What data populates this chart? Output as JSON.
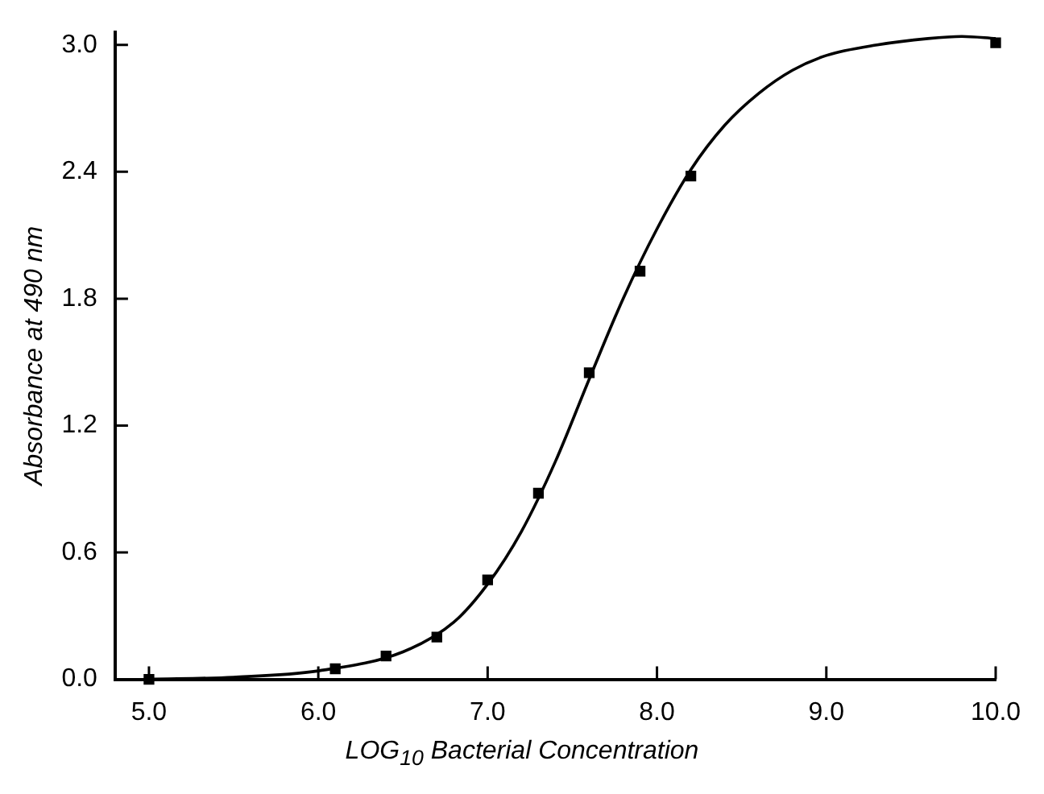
{
  "chart_data": {
    "type": "scatter",
    "xlabel": "LOG$_{10}$ Bacterial Concentration",
    "ylabel": "Absorbance at 490 nm",
    "xlim": [
      4.8,
      10.0
    ],
    "ylim": [
      0,
      3.06
    ],
    "xticks": [
      {
        "value": 5,
        "label": "5.0"
      },
      {
        "value": 6,
        "label": "6.0"
      },
      {
        "value": 7,
        "label": "7.0"
      },
      {
        "value": 8,
        "label": "8.0"
      },
      {
        "value": 9,
        "label": "9.0"
      },
      {
        "value": 10,
        "label": "10.0"
      }
    ],
    "yticks": [
      {
        "value": 0,
        "label": "0.0"
      },
      {
        "value": 0.6,
        "label": "0.6"
      },
      {
        "value": 1.2,
        "label": "1.2"
      },
      {
        "value": 1.8,
        "label": "1.8"
      },
      {
        "value": 2.4,
        "label": "2.4"
      },
      {
        "value": 3,
        "label": "3.0"
      }
    ],
    "grid": false,
    "legend": false,
    "series": [
      {
        "type": "scatter",
        "marker": "square",
        "color": "#000000",
        "x": [
          5.0,
          6.1,
          6.4,
          6.7,
          7.0,
          7.3,
          7.6,
          7.9,
          8.2,
          10.0
        ],
        "values": [
          0,
          0.05,
          0.11,
          0.2,
          0.47,
          0.88,
          1.45,
          1.93,
          2.38,
          3.01
        ]
      },
      {
        "type": "line",
        "marker": "none",
        "line_style": "solid",
        "color": "#000000",
        "x": [
          5.0,
          5.5,
          6.0,
          6.5,
          6.8,
          7.0,
          7.2,
          7.4,
          7.6,
          7.8,
          8.0,
          8.2,
          8.4,
          8.6,
          8.8,
          9.0,
          9.3,
          9.6,
          9.8,
          10.0
        ],
        "values": [
          0,
          0.01,
          0.04,
          0.13,
          0.27,
          0.45,
          0.7,
          1.03,
          1.42,
          1.8,
          2.13,
          2.41,
          2.62,
          2.77,
          2.88,
          2.95,
          3.0,
          3.03,
          3.04,
          3.03
        ]
      }
    ]
  }
}
